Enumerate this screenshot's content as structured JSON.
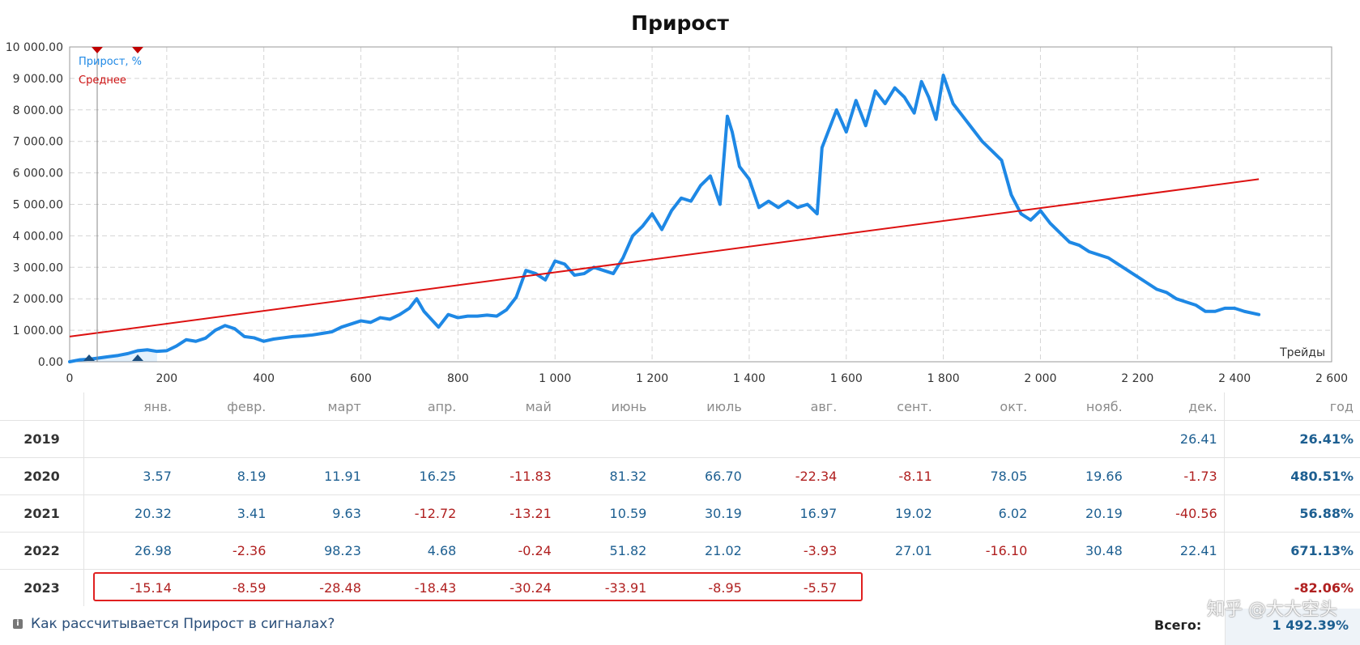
{
  "chart_data": {
    "type": "line",
    "title": "Прирост",
    "xlabel": "Трейды",
    "ylabel": "",
    "xlim": [
      0,
      2600
    ],
    "ylim": [
      0,
      10000
    ],
    "grid": true,
    "legend_position": "top-left",
    "x_ticks": [
      "0",
      "200",
      "400",
      "600",
      "800",
      "1 000",
      "1 200",
      "1 400",
      "1 600",
      "1 800",
      "2 000",
      "2 200",
      "2 400",
      "2 600"
    ],
    "x_tick_values": [
      0,
      200,
      400,
      600,
      800,
      1000,
      1200,
      1400,
      1600,
      1800,
      2000,
      2200,
      2400,
      2600
    ],
    "y_ticks": [
      "0.00",
      "1 000.00",
      "2 000.00",
      "3 000.00",
      "4 000.00",
      "5 000.00",
      "6 000.00",
      "7 000.00",
      "8 000.00",
      "9 000.00",
      "10 000.00"
    ],
    "y_tick_values": [
      0,
      1000,
      2000,
      3000,
      4000,
      5000,
      6000,
      7000,
      8000,
      9000,
      10000
    ],
    "series": [
      {
        "name": "Прирост, %",
        "color": "#1e88e5",
        "x": [
          0,
          20,
          40,
          60,
          80,
          100,
          120,
          140,
          160,
          180,
          200,
          220,
          240,
          260,
          280,
          300,
          320,
          340,
          360,
          380,
          400,
          420,
          440,
          460,
          480,
          500,
          520,
          540,
          560,
          580,
          600,
          620,
          640,
          660,
          680,
          700,
          715,
          730,
          760,
          780,
          800,
          820,
          840,
          860,
          880,
          900,
          920,
          940,
          960,
          980,
          1000,
          1020,
          1040,
          1060,
          1080,
          1100,
          1120,
          1140,
          1160,
          1180,
          1200,
          1220,
          1240,
          1260,
          1280,
          1300,
          1320,
          1340,
          1355,
          1365,
          1380,
          1400,
          1420,
          1440,
          1460,
          1480,
          1500,
          1520,
          1540,
          1550,
          1560,
          1580,
          1600,
          1620,
          1640,
          1660,
          1680,
          1700,
          1720,
          1740,
          1755,
          1770,
          1785,
          1800,
          1820,
          1840,
          1860,
          1880,
          1900,
          1920,
          1940,
          1960,
          1980,
          2000,
          2020,
          2040,
          2060,
          2080,
          2100,
          2120,
          2140,
          2160,
          2180,
          2200,
          2220,
          2240,
          2260,
          2280,
          2300,
          2320,
          2340,
          2360,
          2380,
          2400,
          2420,
          2450
        ],
        "y": [
          0,
          60,
          80,
          120,
          160,
          200,
          260,
          350,
          380,
          330,
          350,
          500,
          700,
          650,
          750,
          1000,
          1150,
          1050,
          800,
          760,
          650,
          720,
          760,
          800,
          820,
          850,
          900,
          950,
          1100,
          1200,
          1300,
          1250,
          1400,
          1350,
          1500,
          1700,
          2000,
          1600,
          1100,
          1500,
          1400,
          1450,
          1450,
          1480,
          1450,
          1650,
          2050,
          2900,
          2800,
          2600,
          3200,
          3100,
          2750,
          2800,
          3000,
          2900,
          2800,
          3300,
          4000,
          4300,
          4700,
          4200,
          4800,
          5200,
          5100,
          5600,
          5900,
          5000,
          7800,
          7300,
          6200,
          5800,
          4900,
          5100,
          4900,
          5100,
          4900,
          5000,
          4700,
          6800,
          7200,
          8000,
          7300,
          8300,
          7500,
          8600,
          8200,
          8700,
          8400,
          7900,
          8900,
          8400,
          7700,
          9100,
          8200,
          7800,
          7400,
          7000,
          6700,
          6400,
          5300,
          4700,
          4500,
          4800,
          4400,
          4100,
          3800,
          3700,
          3500,
          3400,
          3300,
          3100,
          2900,
          2700,
          2500,
          2300,
          2200,
          2000,
          1900,
          1800,
          1600,
          1600,
          1700,
          1700,
          1600,
          1500
        ]
      },
      {
        "name": "Среднее",
        "color": "#dd1111",
        "x": [
          0,
          2450
        ],
        "y": [
          800,
          5800
        ]
      }
    ]
  },
  "monthly_table": {
    "months": [
      "янв.",
      "февр.",
      "март",
      "апр.",
      "май",
      "июнь",
      "июль",
      "авг.",
      "сент.",
      "окт.",
      "нояб.",
      "дек."
    ],
    "year_header": "год",
    "rows": [
      {
        "year": "2019",
        "values": [
          "",
          "",
          "",
          "",
          "",
          "",
          "",
          "",
          "",
          "",
          "",
          "26.41"
        ],
        "total": "26.41%"
      },
      {
        "year": "2020",
        "values": [
          "3.57",
          "8.19",
          "11.91",
          "16.25",
          "-11.83",
          "81.32",
          "66.70",
          "-22.34",
          "-8.11",
          "78.05",
          "19.66",
          "-1.73"
        ],
        "total": "480.51%"
      },
      {
        "year": "2021",
        "values": [
          "20.32",
          "3.41",
          "9.63",
          "-12.72",
          "-13.21",
          "10.59",
          "30.19",
          "16.97",
          "19.02",
          "6.02",
          "20.19",
          "-40.56"
        ],
        "total": "56.88%"
      },
      {
        "year": "2022",
        "values": [
          "26.98",
          "-2.36",
          "98.23",
          "4.68",
          "-0.24",
          "51.82",
          "21.02",
          "-3.93",
          "27.01",
          "-16.10",
          "30.48",
          "22.41"
        ],
        "total": "671.13%"
      },
      {
        "year": "2023",
        "values": [
          "-15.14",
          "-8.59",
          "-28.48",
          "-18.43",
          "-30.24",
          "-33.91",
          "-8.95",
          "-5.57",
          "",
          "",
          "",
          ""
        ],
        "total": "-82.06%"
      }
    ]
  },
  "footer": {
    "link_text": "Как рассчитывается Прирост в сигналах?",
    "total_label": "Всего:",
    "total_value": "1 492.39%"
  },
  "watermark": "知乎 @大大空头"
}
